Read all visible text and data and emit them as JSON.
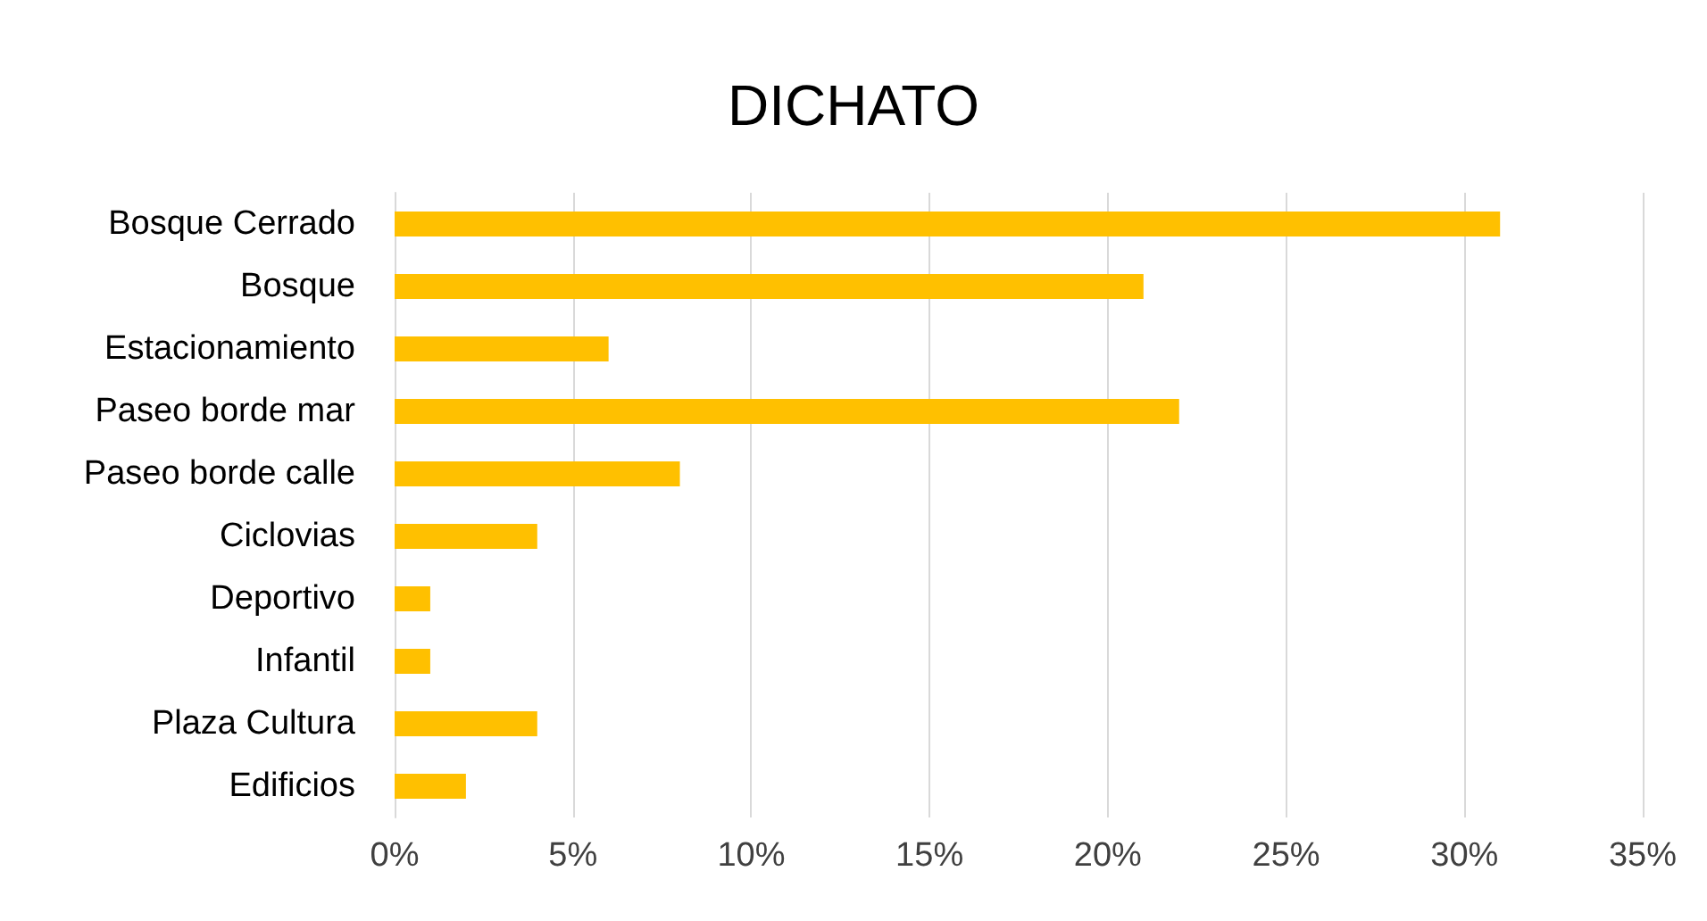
{
  "chart_data": {
    "type": "bar",
    "orientation": "horizontal",
    "title": "DICHATO",
    "categories": [
      "Bosque Cerrado",
      "Bosque",
      "Estacionamiento",
      "Paseo borde mar",
      "Paseo borde calle",
      "Ciclovias",
      "Deportivo",
      "Infantil",
      "Plaza Cultura",
      "Edificios"
    ],
    "values": [
      31,
      21,
      6,
      22,
      8,
      4,
      1,
      1,
      4,
      2
    ],
    "color": "#ffc000",
    "xlim": [
      0,
      35
    ],
    "xticks": [
      {
        "value": 0,
        "label": "0%"
      },
      {
        "value": 5,
        "label": "5%"
      },
      {
        "value": 10,
        "label": "10%"
      },
      {
        "value": 15,
        "label": "15%"
      },
      {
        "value": 20,
        "label": "20%"
      },
      {
        "value": 25,
        "label": "25%"
      },
      {
        "value": 30,
        "label": "30%"
      },
      {
        "value": 35,
        "label": "35%"
      }
    ],
    "grid": "x"
  }
}
